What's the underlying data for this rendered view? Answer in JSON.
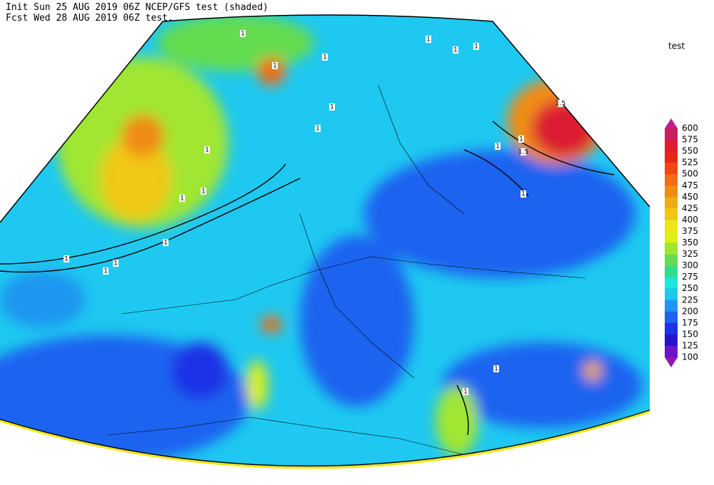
{
  "header": {
    "line1": "Init  Sun 25 AUG 2019 06Z  NCEP/GFS test (shaded)",
    "line2": "Fcst Wed 28 AUG 2019 06Z  test."
  },
  "legend": {
    "title": "test",
    "levels": [
      "600",
      "575",
      "550",
      "525",
      "500",
      "475",
      "450",
      "425",
      "400",
      "375",
      "350",
      "325",
      "300",
      "275",
      "250",
      "225",
      "200",
      "175",
      "150",
      "125",
      "100"
    ],
    "colors": [
      "#be1e8c",
      "#c81e64",
      "#dc1e32",
      "#e62814",
      "#f04614",
      "#f06e14",
      "#f08c14",
      "#f0aa14",
      "#f0c814",
      "#f0e614",
      "#dcf014",
      "#a0e632",
      "#64dc50",
      "#32dc8c",
      "#1ee6dc",
      "#1ec8f0",
      "#1e96f0",
      "#1e64f0",
      "#1e32e6",
      "#2814c8",
      "#6e14c8",
      "#9614b4"
    ]
  },
  "contour_labels": [
    "1",
    "1",
    "1",
    "1",
    "1",
    "1",
    "1",
    "1",
    "1",
    "1",
    "1",
    "1",
    "1",
    "1",
    "1",
    "1",
    "1",
    "1.5",
    "1.5",
    "1",
    "1",
    "1"
  ]
}
